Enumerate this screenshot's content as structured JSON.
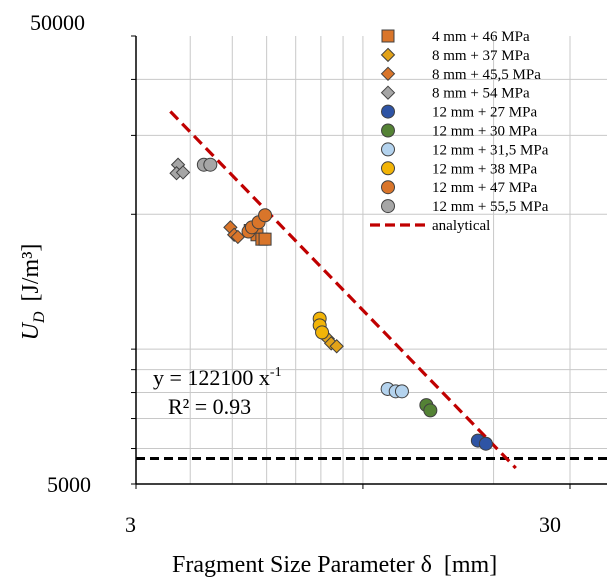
{
  "chart_data": {
    "type": "scatter",
    "xlabel": "Fragment Size Parameter δ  [mm]",
    "ylabel_main": "U",
    "ylabel_sub": "D",
    "ylabel_units": "[J/m³]",
    "xscale": "log",
    "yscale": "log",
    "xlim": [
      3,
      40
    ],
    "ylim": [
      5000,
      50000
    ],
    "x_tick_labels": [
      "3",
      "30"
    ],
    "y_tick_labels": [
      "5000",
      "50000"
    ],
    "grid": true,
    "legend_position": "top-right",
    "series": [
      {
        "name": "4 mm + 46 MPa",
        "marker": "square",
        "color": "#D9752A",
        "points": [
          [
            5.5,
            18400
          ],
          [
            5.7,
            18000
          ],
          [
            5.85,
            17600
          ],
          [
            5.95,
            17600
          ]
        ]
      },
      {
        "name": "8 mm + 37 MPa",
        "marker": "diamond",
        "color": "#E2A219",
        "points": [
          [
            8.1,
            10800
          ],
          [
            8.3,
            10550
          ],
          [
            8.45,
            10300
          ],
          [
            8.7,
            10150
          ]
        ]
      },
      {
        "name": "8 mm + 45,5 MPa",
        "marker": "diamond",
        "color": "#D9752A",
        "points": [
          [
            4.95,
            18700
          ],
          [
            5.05,
            18000
          ],
          [
            5.15,
            17800
          ]
        ]
      },
      {
        "name": "8 mm + 54 MPa",
        "marker": "diamond",
        "color": "#A6A6A6",
        "points": [
          [
            3.75,
            25800
          ],
          [
            3.72,
            24700
          ],
          [
            3.85,
            24800
          ]
        ]
      },
      {
        "name": "12 mm + 27 MPa",
        "marker": "circle",
        "color": "#2E54A5",
        "points": [
          [
            18.4,
            6250
          ],
          [
            19.2,
            6150
          ]
        ]
      },
      {
        "name": "12 mm + 30 MPa",
        "marker": "circle",
        "color": "#548235",
        "points": [
          [
            14.0,
            7500
          ],
          [
            14.3,
            7300
          ]
        ]
      },
      {
        "name": "12 mm + 31,5 MPa",
        "marker": "circle",
        "color": "#B4D3EE",
        "points": [
          [
            11.4,
            8150
          ],
          [
            11.9,
            8050
          ],
          [
            12.3,
            8050
          ]
        ]
      },
      {
        "name": "12 mm + 38 MPa",
        "marker": "circle",
        "color": "#F2B407",
        "points": [
          [
            7.95,
            11700
          ],
          [
            7.95,
            11300
          ],
          [
            8.05,
            10900
          ]
        ]
      },
      {
        "name": "12 mm + 47 MPa",
        "marker": "circle",
        "color": "#D9752A",
        "points": [
          [
            5.45,
            18300
          ],
          [
            5.55,
            18700
          ],
          [
            5.75,
            19200
          ],
          [
            5.95,
            19900
          ]
        ]
      },
      {
        "name": "12 mm + 55,5 MPa",
        "marker": "circle",
        "color": "#A6A6A6",
        "points": [
          [
            4.3,
            25800
          ],
          [
            4.45,
            25800
          ]
        ]
      }
    ],
    "fit_line": {
      "name": "analytical",
      "color": "#C00000",
      "x_range": [
        3.6,
        22.5
      ]
    },
    "reference_line": {
      "y": 5700,
      "color": "#000000"
    },
    "equation": {
      "line1_base": "y = 122100 x",
      "line1_exp": "-1",
      "line2": "R² = 0.93",
      "color": "#C00000"
    }
  }
}
